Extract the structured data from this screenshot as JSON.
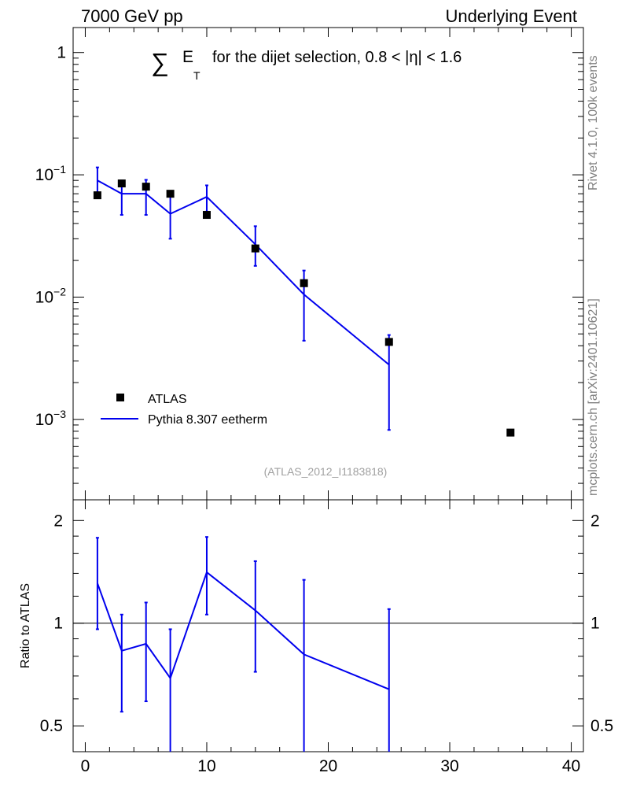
{
  "header": {
    "left": "7000 GeV pp",
    "right": "Underlying Event"
  },
  "side_labels": {
    "rivet": "Rivet 4.1.0,  100k events",
    "mcplots": "mcplots.cern.ch [arXiv:2401.10621]"
  },
  "colors": {
    "data": "#000000",
    "mc": "#0000ee",
    "watermark": "#a0a0a0"
  },
  "chart_data": [
    {
      "type": "scatter",
      "panel": "main",
      "title_prefix": "∑",
      "title_var": "E",
      "title_sub": "T",
      "title_rest": "for the dijet selection, 0.8 < |η| < 1.6",
      "watermark": "(ATLAS_2012_I1183818)",
      "xlim": [
        -1,
        41
      ],
      "ylim": [
        0.00022,
        1.6
      ],
      "yscale": "log",
      "y_ticks": [
        {
          "base": "1",
          "exp": "",
          "value": 1
        },
        {
          "base": "10",
          "exp": "−1",
          "value": 0.1
        },
        {
          "base": "10",
          "exp": "−2",
          "value": 0.01
        },
        {
          "base": "10",
          "exp": "−3",
          "value": 0.001
        }
      ],
      "legend": {
        "position": "lower-left",
        "data_label": "ATLAS",
        "mc_label": "Pythia 8.307 eetherm"
      },
      "series": [
        {
          "name": "ATLAS",
          "style": "markers",
          "x": [
            1,
            3,
            5,
            7,
            10,
            14,
            18,
            25,
            35
          ],
          "y": [
            0.068,
            0.085,
            0.08,
            0.07,
            0.047,
            0.025,
            0.013,
            0.0043,
            0.00078
          ]
        },
        {
          "name": "Pythia 8.307 eetherm",
          "style": "line-errorbars",
          "x": [
            1,
            3,
            5,
            7,
            10,
            14,
            18,
            25
          ],
          "y": [
            0.09,
            0.07,
            0.07,
            0.048,
            0.066,
            0.027,
            0.0105,
            0.0028
          ],
          "y_low": [
            0.072,
            0.047,
            0.047,
            0.03,
            0.05,
            0.018,
            0.0044,
            0.00082
          ],
          "y_high": [
            0.115,
            0.09,
            0.091,
            0.07,
            0.082,
            0.038,
            0.0165,
            0.0049
          ]
        }
      ]
    },
    {
      "type": "line",
      "panel": "ratio",
      "ylabel": "Ratio to ATLAS",
      "xlim": [
        -1,
        41
      ],
      "ylim": [
        0.42,
        2.3
      ],
      "yscale": "log",
      "x_ticks": [
        0,
        10,
        20,
        30,
        40
      ],
      "y_ticks": [
        {
          "label": "2",
          "value": 2
        },
        {
          "label": "1",
          "value": 1
        },
        {
          "label": "0.5",
          "value": 0.5
        }
      ],
      "reference_line": 1,
      "series": [
        {
          "name": "Pythia 8.307 eetherm",
          "x": [
            1,
            3,
            5,
            7,
            10,
            14,
            18,
            25
          ],
          "y": [
            1.31,
            0.83,
            0.87,
            0.69,
            1.41,
            1.09,
            0.81,
            0.64
          ],
          "y_low": [
            0.96,
            0.55,
            0.59,
            0.38,
            1.06,
            0.72,
            0.38,
            0.38
          ],
          "y_high": [
            1.78,
            1.06,
            1.15,
            0.96,
            1.79,
            1.52,
            1.34,
            1.1
          ]
        }
      ]
    }
  ]
}
